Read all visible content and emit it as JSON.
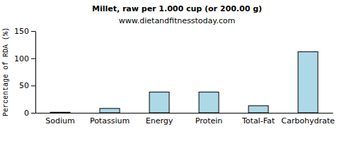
{
  "chart_data": {
    "type": "bar",
    "title": "Millet, raw per 1.000 cup (or 200.00 g)",
    "subtitle": "www.dietandfitnesstoday.com",
    "ylabel": "Percentage of RDA (%)",
    "categories": [
      "Sodium",
      "Potassium",
      "Energy",
      "Protein",
      "Total-Fat",
      "Carbohydrate"
    ],
    "values": [
      1,
      8,
      38,
      38,
      13,
      112
    ],
    "color": "#add8e6",
    "ylim": [
      0,
      150
    ],
    "yticks": [
      0,
      50,
      100,
      150
    ],
    "grid": false
  }
}
